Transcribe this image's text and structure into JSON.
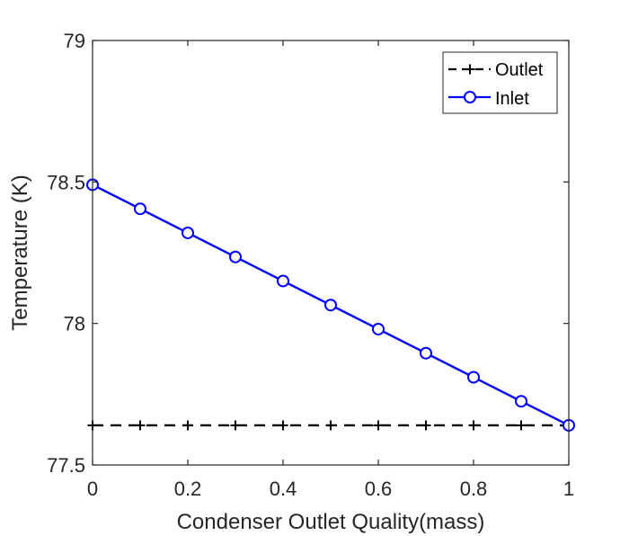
{
  "chart_data": {
    "type": "line",
    "title": "",
    "xlabel": "Condenser Outlet Quality(mass)",
    "ylabel": "Temperature (K)",
    "xlim": [
      0,
      1
    ],
    "ylim": [
      77.5,
      79
    ],
    "x_ticks": [
      0,
      0.2,
      0.4,
      0.6,
      0.8,
      1
    ],
    "x_tick_labels": [
      "0",
      "0.2",
      "0.4",
      "0.6",
      "0.8",
      "1"
    ],
    "y_ticks": [
      77.5,
      78,
      78.5,
      79
    ],
    "y_tick_labels": [
      "77.5",
      "78",
      "78.5",
      "79"
    ],
    "grid": false,
    "legend_position": "top-right",
    "x": [
      0,
      0.1,
      0.2,
      0.3,
      0.4,
      0.5,
      0.6,
      0.7,
      0.8,
      0.9,
      1.0
    ],
    "series": [
      {
        "name": "Outlet",
        "color": "#000000",
        "line_style": "dashed",
        "marker": "plus",
        "values": [
          77.64,
          77.64,
          77.64,
          77.64,
          77.64,
          77.64,
          77.64,
          77.64,
          77.64,
          77.64,
          77.64
        ]
      },
      {
        "name": "Inlet",
        "color": "#0000ff",
        "line_style": "solid",
        "marker": "circle",
        "values": [
          78.49,
          78.405,
          78.32,
          78.235,
          78.15,
          78.065,
          77.98,
          77.895,
          77.81,
          77.725,
          77.64
        ]
      }
    ]
  }
}
